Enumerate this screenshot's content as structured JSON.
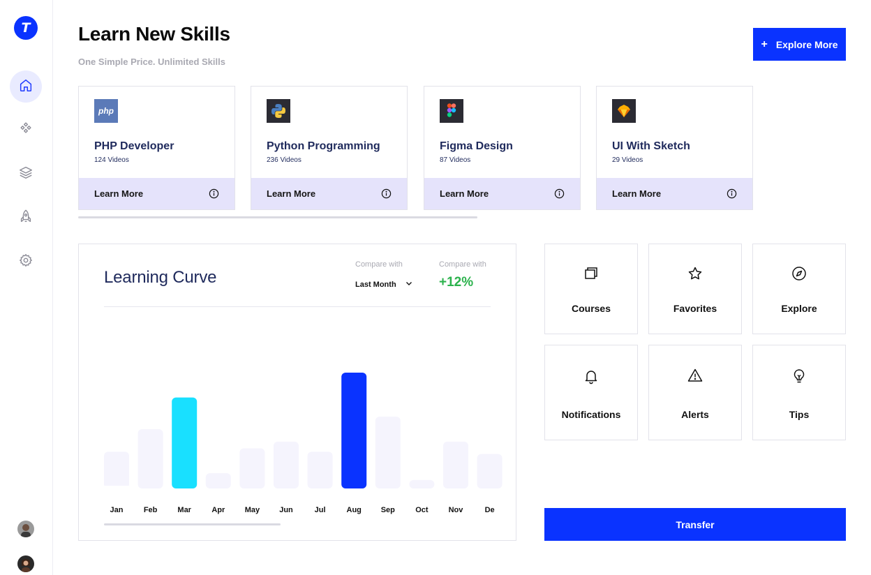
{
  "sidebar": {
    "logo_letter": "T",
    "nav": [
      {
        "name": "home",
        "active": true
      },
      {
        "name": "components"
      },
      {
        "name": "layers"
      },
      {
        "name": "launch"
      },
      {
        "name": "settings"
      }
    ],
    "accent_color": "#0a33ff"
  },
  "header": {
    "title": "Learn New Skills",
    "subtitle": "One Simple Price. Unlimited Skills",
    "explore_button": {
      "icon": "+",
      "label": "Explore More"
    }
  },
  "courses": [
    {
      "title": "PHP Developer",
      "count": "124 Videos",
      "action": "Learn More",
      "icon": "php-logo-icon"
    },
    {
      "title": "Python Programming",
      "count": "236 Videos",
      "action": "Learn More",
      "icon": "python-logo-icon"
    },
    {
      "title": "Figma Design",
      "count": "87 Videos",
      "action": "Learn More",
      "icon": "figma-logo-icon"
    },
    {
      "title": "UI With Sketch",
      "count": "29 Videos",
      "action": "Learn More",
      "icon": "sketch-logo-icon"
    }
  ],
  "learning_curve": {
    "title": "Learning Curve",
    "compare_label_1": "Compare with",
    "compare_select": "Last Month",
    "compare_label_2": "Compare with",
    "compare_value": "+12%",
    "compare_value_color": "#2bb24c"
  },
  "chart_data": {
    "type": "bar",
    "title": "Learning Curve",
    "categories": [
      "Jan",
      "Feb",
      "Mar",
      "Apr",
      "May",
      "Jun",
      "Jul",
      "Aug",
      "Sep",
      "Oct",
      "Nov",
      "De"
    ],
    "values": [
      30,
      50,
      78,
      11,
      33,
      39,
      30,
      100,
      61,
      5,
      39,
      28
    ],
    "highlight": {
      "Mar": "#19e0ff",
      "Aug": "#0a33ff"
    },
    "default_color": "#f5f4fd",
    "grid": false
  },
  "tiles": [
    {
      "label": "Courses",
      "icon": "courses-icon"
    },
    {
      "label": "Favorites",
      "icon": "star-icon"
    },
    {
      "label": "Explore",
      "icon": "compass-icon"
    },
    {
      "label": "Notifications",
      "icon": "bell-icon"
    },
    {
      "label": "Alerts",
      "icon": "alert-triangle-icon"
    },
    {
      "label": "Tips",
      "icon": "lightbulb-icon"
    }
  ],
  "transfer_button": {
    "label": "Transfer"
  }
}
